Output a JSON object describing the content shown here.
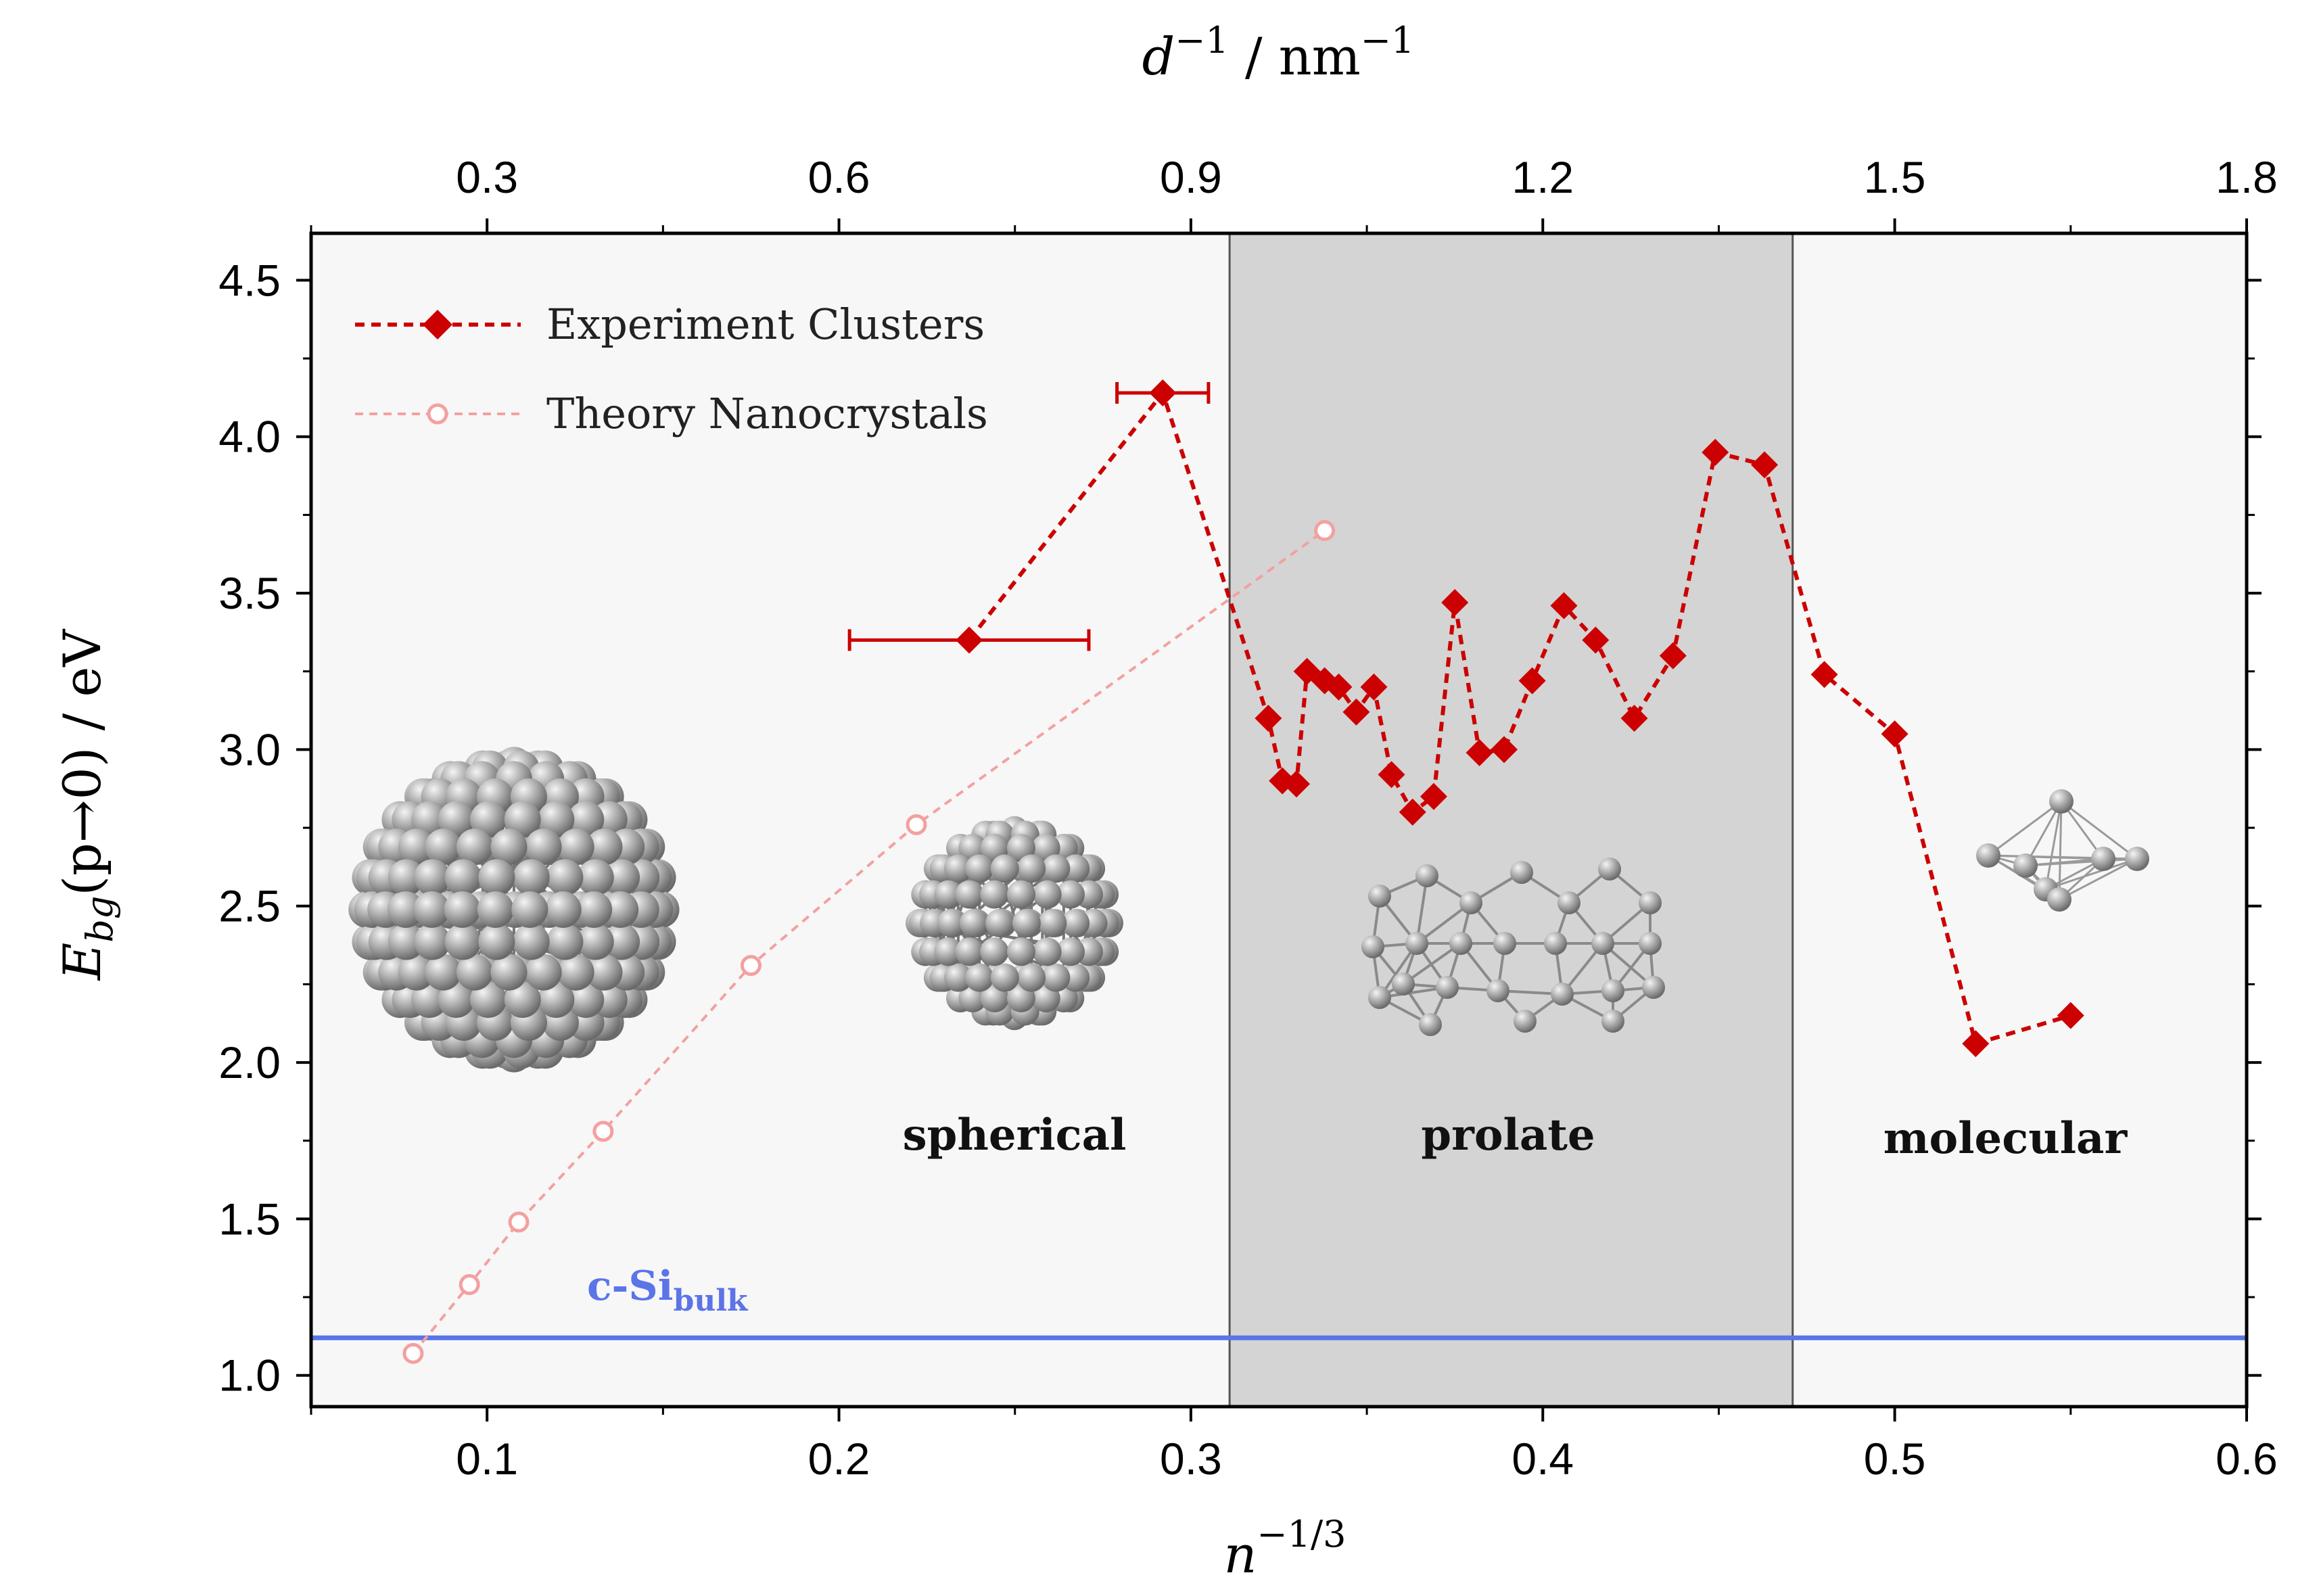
{
  "chart_data": {
    "type": "line",
    "x_bottom": {
      "label": "n^(-1/3)",
      "range": [
        0.05,
        0.6
      ],
      "ticks": [
        "0.1",
        "0.2",
        "0.3",
        "0.4",
        "0.5",
        "0.6"
      ]
    },
    "x_top": {
      "label": "d^-1 / nm^-1",
      "range": [
        0.15,
        1.8
      ],
      "ticks": [
        "0.3",
        "0.6",
        "0.9",
        "1.2",
        "1.5",
        "1.8"
      ]
    },
    "y": {
      "label": "E_bg(p→0) / eV",
      "range": [
        0.9,
        4.65
      ],
      "ticks": [
        "1.0",
        "1.5",
        "2.0",
        "2.5",
        "3.0",
        "3.5",
        "4.0",
        "4.5"
      ]
    },
    "series": [
      {
        "name": "Experiment Clusters",
        "color": "#cc0000",
        "marker": "diamond",
        "points": [
          {
            "x": 0.237,
            "y": 3.35,
            "xerr": [
              0.203,
              0.271
            ]
          },
          {
            "x": 0.292,
            "y": 4.14,
            "xerr": [
              0.279,
              0.305
            ]
          },
          {
            "x": 0.322,
            "y": 3.1
          },
          {
            "x": 0.326,
            "y": 2.9
          },
          {
            "x": 0.33,
            "y": 2.89
          },
          {
            "x": 0.333,
            "y": 3.25
          },
          {
            "x": 0.338,
            "y": 3.22
          },
          {
            "x": 0.342,
            "y": 3.2
          },
          {
            "x": 0.347,
            "y": 3.12
          },
          {
            "x": 0.352,
            "y": 3.2
          },
          {
            "x": 0.357,
            "y": 2.92
          },
          {
            "x": 0.363,
            "y": 2.8
          },
          {
            "x": 0.369,
            "y": 2.85
          },
          {
            "x": 0.375,
            "y": 3.47
          },
          {
            "x": 0.382,
            "y": 2.99
          },
          {
            "x": 0.389,
            "y": 3.0
          },
          {
            "x": 0.397,
            "y": 3.22
          },
          {
            "x": 0.406,
            "y": 3.46
          },
          {
            "x": 0.415,
            "y": 3.35
          },
          {
            "x": 0.426,
            "y": 3.1
          },
          {
            "x": 0.437,
            "y": 3.3
          },
          {
            "x": 0.449,
            "y": 3.95
          },
          {
            "x": 0.463,
            "y": 3.91
          },
          {
            "x": 0.48,
            "y": 3.24
          },
          {
            "x": 0.5,
            "y": 3.05
          },
          {
            "x": 0.523,
            "y": 2.06
          },
          {
            "x": 0.55,
            "y": 2.15
          }
        ]
      },
      {
        "name": "Theory Nanocrystals",
        "color": "#f4a0a0",
        "marker": "open-circle",
        "points": [
          {
            "x": 0.079,
            "y": 1.07
          },
          {
            "x": 0.095,
            "y": 1.29
          },
          {
            "x": 0.109,
            "y": 1.49
          },
          {
            "x": 0.133,
            "y": 1.78
          },
          {
            "x": 0.175,
            "y": 2.31
          },
          {
            "x": 0.222,
            "y": 2.76
          },
          {
            "x": 0.338,
            "y": 3.7
          }
        ]
      }
    ],
    "reference_line": {
      "label": "c-Si",
      "label_sub": "bulk",
      "y": 1.12,
      "color": "#5b74e8"
    },
    "regions": [
      {
        "label": "spherical",
        "x_range": [
          0.05,
          0.311
        ],
        "fill": "#f7f7f7"
      },
      {
        "label": "prolate",
        "x_range": [
          0.311,
          0.471
        ],
        "fill": "#d4d4d4"
      },
      {
        "label": "molecular",
        "x_range": [
          0.471,
          0.6
        ],
        "fill": "#f7f7f7"
      }
    ],
    "legend_placement": "top-left",
    "grid": false
  },
  "text": {
    "x_top_title_main": "d",
    "x_top_title_sup": "−1",
    "x_top_title_rest": " / nm",
    "x_top_title_sup2": "−1",
    "x_bottom_title_main": "n",
    "x_bottom_title_sup": "−1/3",
    "y_title_main": "E",
    "y_title_sub": "bg",
    "y_title_rest": "(p→0)  /  eV",
    "bulk_main": "c-Si",
    "bulk_sub": "bulk"
  }
}
